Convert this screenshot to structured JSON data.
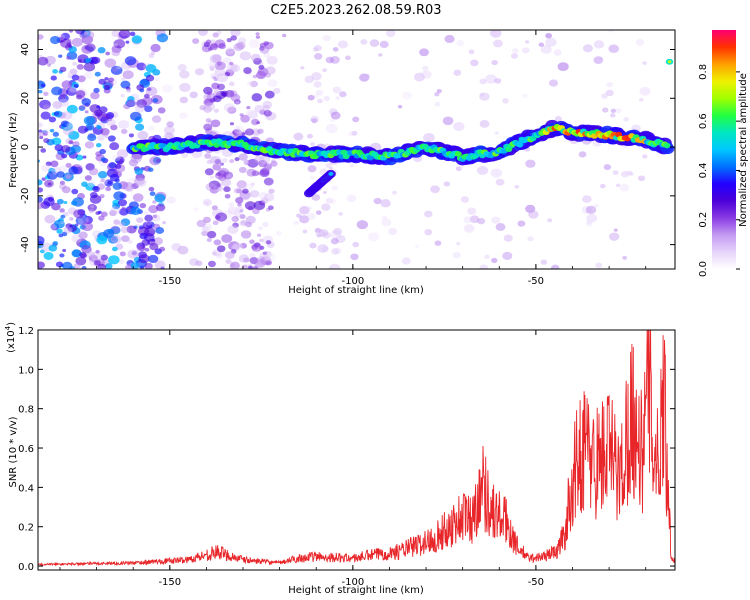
{
  "figure": {
    "title": "C2E5.2023.262.08.59.R03"
  },
  "colors": {
    "snr_line": "#e8262a",
    "axis": "#000000"
  },
  "chart_data": [
    {
      "type": "heatmap",
      "xlabel": "Height of straight line (km)",
      "ylabel": "Frequency (Hz)",
      "xlim": [
        -186,
        -12
      ],
      "ylim": [
        -50,
        48
      ],
      "xticks": [
        -150,
        -100,
        -50
      ],
      "xtick_labels": [
        "-150",
        "-100",
        "-50"
      ],
      "yticks": [
        -40,
        -20,
        0,
        20,
        40
      ],
      "ytick_labels": [
        "-40",
        "-20",
        "0",
        "20",
        "40"
      ],
      "colorbar": {
        "label": "Normalized spectral amplitude",
        "range": [
          0,
          0.97
        ],
        "ticks": [
          0.0,
          0.2,
          0.4,
          0.6,
          0.8
        ],
        "tick_labels": [
          "0.0",
          "0.2",
          "0.4",
          "0.6",
          "0.8"
        ],
        "colormap": [
          "#ffffff",
          "#e6d4fb",
          "#c49af2",
          "#8a3be4",
          "#4a00d8",
          "#2200ff",
          "#0072ff",
          "#00c8ff",
          "#00e8c0",
          "#22ff40",
          "#a0ff00",
          "#f0f000",
          "#ffa000",
          "#ff3000",
          "#ff0070"
        ]
      },
      "ridge": {
        "description_points_x": [
          -160,
          -150,
          -140,
          -130,
          -120,
          -110,
          -100,
          -90,
          -80,
          -70,
          -60,
          -50,
          -45,
          -40,
          -30,
          -20,
          -14
        ],
        "description_points_y": [
          0,
          0,
          2,
          1,
          -2,
          -3,
          -3,
          -4,
          0,
          -4,
          -2,
          5,
          8,
          6,
          5,
          3,
          0
        ]
      },
      "branch": {
        "x": [
          -112,
          -106
        ],
        "y": [
          -19,
          -11
        ]
      }
    },
    {
      "type": "line",
      "xlabel": "Height of straight line (km)",
      "ylabel": "SNR (10 * v/v)",
      "scale_label": "(x10",
      "scale_exponent": "4",
      "scale_suffix": ")",
      "xlim": [
        -186,
        -12
      ],
      "ylim": [
        -0.02,
        1.2
      ],
      "xticks": [
        -150,
        -100,
        -50
      ],
      "xtick_labels": [
        "-150",
        "-100",
        "-50"
      ],
      "yticks": [
        0.0,
        0.2,
        0.4,
        0.6,
        0.8,
        1.0,
        1.2
      ],
      "ytick_labels": [
        "0.0",
        "0.2",
        "0.4",
        "0.6",
        "0.8",
        "1.0",
        "1.2"
      ],
      "envelope": {
        "x": [
          -186,
          -160,
          -145,
          -137,
          -130,
          -120,
          -115,
          -110,
          -100,
          -95,
          -88,
          -80,
          -75,
          -70,
          -67,
          -65,
          -62,
          -58,
          -55,
          -52,
          -48,
          -44,
          -42,
          -40,
          -37,
          -34,
          -30,
          -27,
          -24,
          -21,
          -19,
          -17,
          -15,
          -14,
          -13,
          -12
        ],
        "y": [
          0.01,
          0.02,
          0.04,
          0.09,
          0.04,
          0.02,
          0.05,
          0.06,
          0.05,
          0.07,
          0.09,
          0.15,
          0.22,
          0.32,
          0.3,
          0.55,
          0.35,
          0.28,
          0.12,
          0.05,
          0.06,
          0.1,
          0.22,
          0.55,
          0.78,
          0.65,
          0.75,
          0.55,
          1.0,
          0.7,
          1.18,
          0.6,
          1.12,
          0.55,
          0.06,
          0.04
        ]
      }
    }
  ]
}
